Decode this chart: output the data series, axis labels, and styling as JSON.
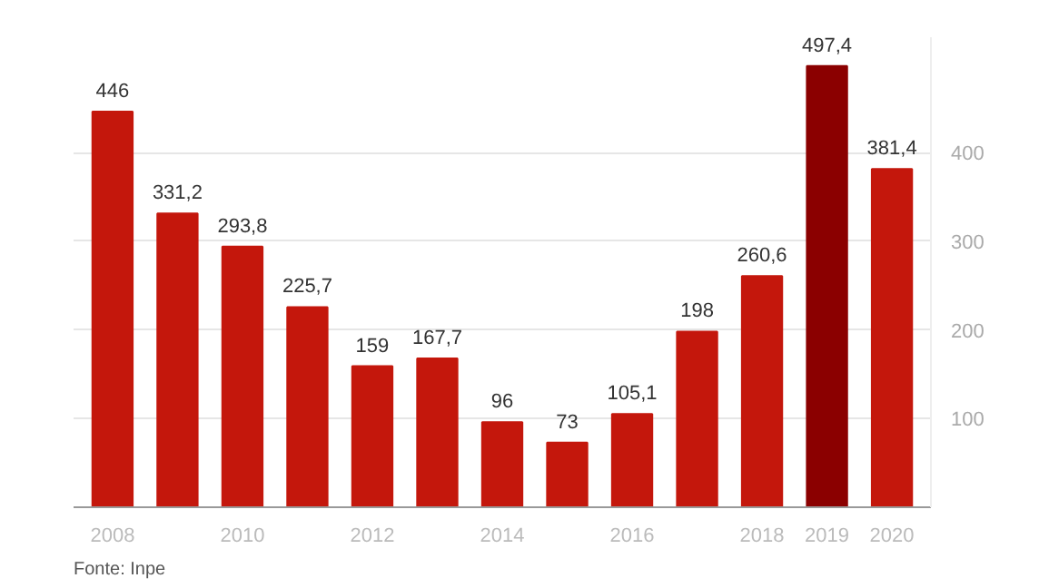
{
  "chart_data": {
    "type": "bar",
    "categories": [
      "2008",
      null,
      "2010",
      null,
      "2012",
      null,
      "2014",
      null,
      "2016",
      null,
      "2018",
      "2019",
      "2020"
    ],
    "values": [
      446,
      331.2,
      293.8,
      225.7,
      159,
      167.7,
      96,
      73,
      105.1,
      198,
      260.6,
      497.4,
      381.4
    ],
    "colors": [
      "#c4170c",
      "#c4170c",
      "#c4170c",
      "#c4170c",
      "#c4170c",
      "#c4170c",
      "#c4170c",
      "#c4170c",
      "#c4170c",
      "#c4170c",
      "#c4170c",
      "#8b0000",
      "#c4170c"
    ],
    "value_labels": [
      "446",
      "331,2",
      "293,8",
      "225,7",
      "159",
      "167,7",
      "96",
      "73",
      "105,1",
      "198",
      "260,6",
      "497,4",
      "381,4"
    ],
    "ylim": [
      0,
      530
    ],
    "yticks": [
      {
        "value": 0,
        "label": null
      },
      100,
      200,
      300,
      400
    ],
    "grid": "y",
    "annotations": [
      "Fonte: Inpe"
    ]
  }
}
